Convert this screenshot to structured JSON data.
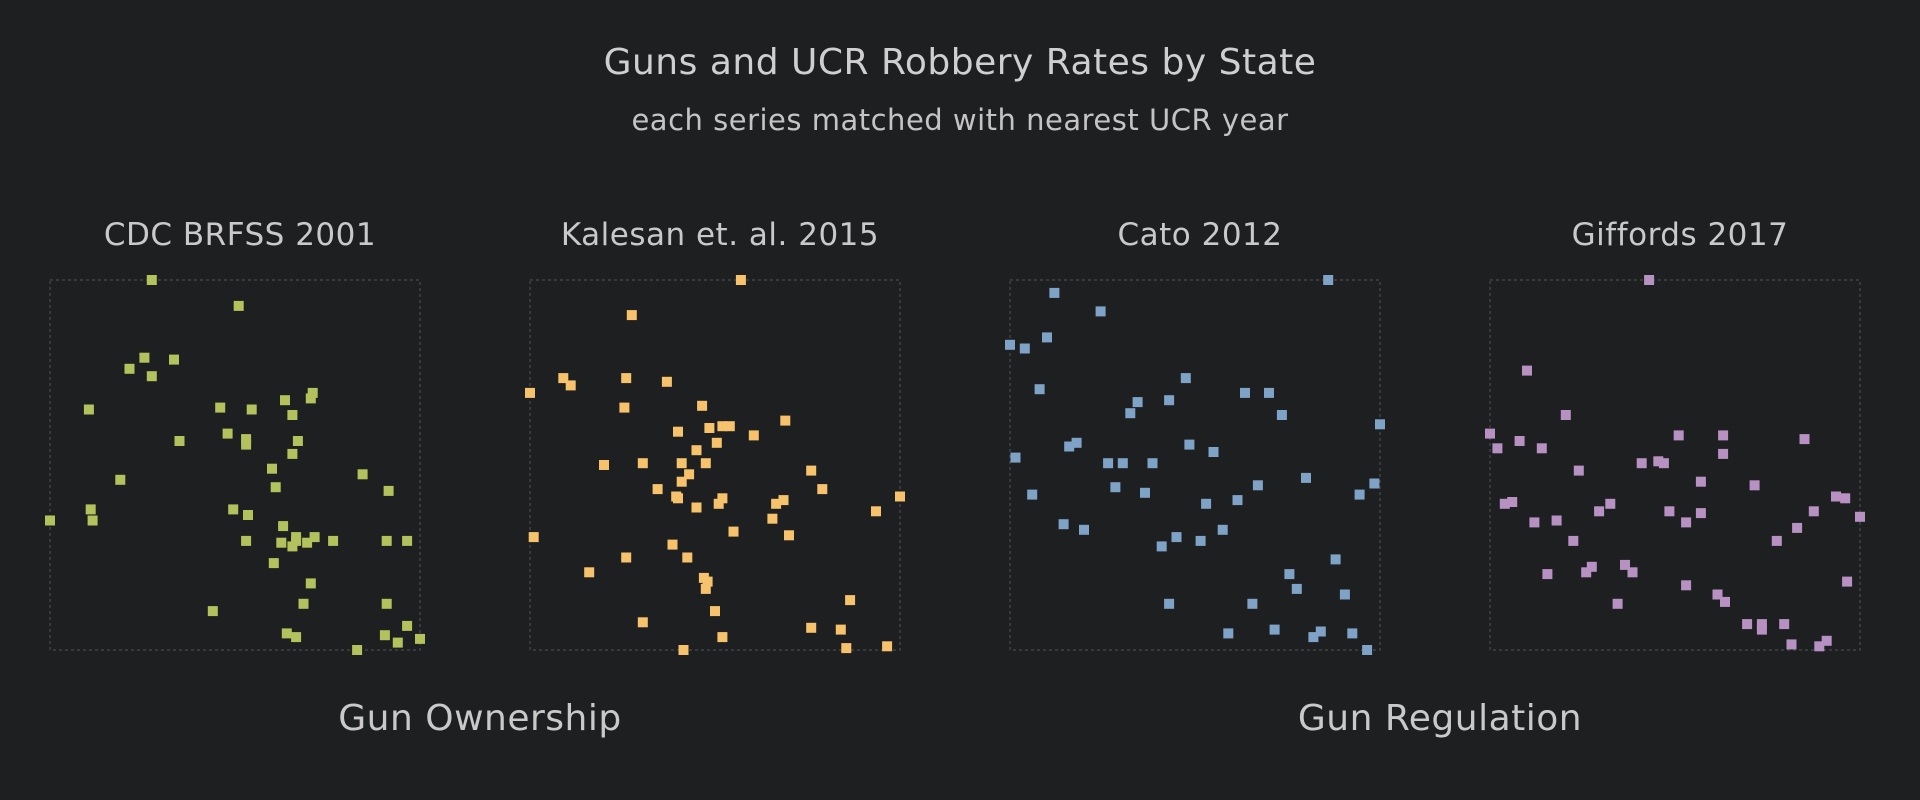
{
  "title": "Guns and UCR Robbery Rates by State",
  "subtitle": "each series matched with nearest UCR year",
  "group_labels": [
    "Gun Ownership",
    "Gun Regulation"
  ],
  "chart_data": [
    {
      "type": "scatter",
      "title": "CDC BRFSS 2001",
      "color": "#b3c25d",
      "xlim": [
        0,
        100
      ],
      "ylim": [
        0,
        100
      ],
      "grid": false,
      "points": [
        [
          27.5,
          100
        ],
        [
          51,
          93
        ],
        [
          25.5,
          79
        ],
        [
          33.5,
          78.5
        ],
        [
          21.5,
          76
        ],
        [
          27.5,
          74
        ],
        [
          10.5,
          65
        ],
        [
          46,
          65.5
        ],
        [
          54.5,
          65
        ],
        [
          63.5,
          67.5
        ],
        [
          70.5,
          68
        ],
        [
          71,
          69.5
        ],
        [
          65.5,
          63.5
        ],
        [
          48,
          58.5
        ],
        [
          35,
          56.5
        ],
        [
          53,
          57
        ],
        [
          53,
          55.5
        ],
        [
          67,
          56.5
        ],
        [
          65.5,
          53
        ],
        [
          19,
          46
        ],
        [
          60,
          49
        ],
        [
          61,
          44
        ],
        [
          84.5,
          47.5
        ],
        [
          91.5,
          43
        ],
        [
          0,
          35
        ],
        [
          11,
          38
        ],
        [
          11.5,
          35
        ],
        [
          49.5,
          38
        ],
        [
          53.5,
          36.5
        ],
        [
          63,
          33.5
        ],
        [
          66.5,
          30.5
        ],
        [
          53,
          29.5
        ],
        [
          71.5,
          30.5
        ],
        [
          62.5,
          29
        ],
        [
          65.5,
          28
        ],
        [
          66.5,
          29.5
        ],
        [
          69.5,
          29
        ],
        [
          76.5,
          29.5
        ],
        [
          91,
          29.5
        ],
        [
          96.5,
          29.5
        ],
        [
          60.5,
          23.5
        ],
        [
          70.5,
          18
        ],
        [
          44,
          10.5
        ],
        [
          68.5,
          12.5
        ],
        [
          91,
          12.5
        ],
        [
          64,
          4.5
        ],
        [
          66.5,
          3.5
        ],
        [
          90.5,
          4
        ],
        [
          96.5,
          6.5
        ],
        [
          94,
          2
        ],
        [
          100,
          3
        ],
        [
          83,
          0
        ]
      ]
    },
    {
      "type": "scatter",
      "title": "Kalesan et. al. 2015",
      "color": "#f6c26b",
      "xlim": [
        0,
        100
      ],
      "ylim": [
        0,
        100
      ],
      "grid": false,
      "points": [
        [
          57,
          100
        ],
        [
          27.5,
          90.5
        ],
        [
          0,
          69.5
        ],
        [
          9,
          73.5
        ],
        [
          11,
          71.5
        ],
        [
          26,
          73.5
        ],
        [
          37,
          72.5
        ],
        [
          25.5,
          65.5
        ],
        [
          46.5,
          66
        ],
        [
          48.5,
          60
        ],
        [
          40,
          59
        ],
        [
          52,
          60.5
        ],
        [
          54,
          60.5
        ],
        [
          60.5,
          58
        ],
        [
          69,
          62
        ],
        [
          50.5,
          56
        ],
        [
          45,
          54
        ],
        [
          30.5,
          50.5
        ],
        [
          20,
          50
        ],
        [
          41,
          50.5
        ],
        [
          41,
          45.5
        ],
        [
          43,
          47.5
        ],
        [
          47.5,
          50.5
        ],
        [
          76,
          48.5
        ],
        [
          79,
          43.5
        ],
        [
          39.5,
          41.5
        ],
        [
          40,
          41
        ],
        [
          52,
          41
        ],
        [
          34.5,
          43.5
        ],
        [
          51,
          39.5
        ],
        [
          45,
          38.5
        ],
        [
          66.5,
          39.5
        ],
        [
          68.5,
          40.5
        ],
        [
          100,
          41.5
        ],
        [
          93.5,
          37.5
        ],
        [
          65.5,
          35.5
        ],
        [
          1,
          30.5
        ],
        [
          55,
          32
        ],
        [
          38.5,
          28.5
        ],
        [
          70,
          31
        ],
        [
          42.5,
          25
        ],
        [
          26,
          25
        ],
        [
          16,
          21
        ],
        [
          47,
          19.5
        ],
        [
          48,
          18.5
        ],
        [
          47.5,
          16.5
        ],
        [
          86.5,
          13.5
        ],
        [
          50,
          10.5
        ],
        [
          30.5,
          7.5
        ],
        [
          76,
          6
        ],
        [
          84,
          5.5
        ],
        [
          52,
          3.5
        ],
        [
          41.5,
          0
        ],
        [
          85.5,
          0.5
        ],
        [
          96.5,
          1
        ]
      ]
    },
    {
      "type": "scatter",
      "title": "Cato 2012",
      "color": "#7fa3c7",
      "xlim": [
        0,
        100
      ],
      "ylim": [
        0,
        100
      ],
      "grid": false,
      "points": [
        [
          86,
          100
        ],
        [
          12,
          96.5
        ],
        [
          24.5,
          91.5
        ],
        [
          10,
          84.5
        ],
        [
          4,
          81.5
        ],
        [
          0,
          82.5
        ],
        [
          8,
          70.5
        ],
        [
          47.5,
          73.5
        ],
        [
          63.5,
          69.5
        ],
        [
          70,
          69.5
        ],
        [
          43,
          67.5
        ],
        [
          34.5,
          67
        ],
        [
          32.5,
          64
        ],
        [
          73.5,
          63.5
        ],
        [
          100,
          61
        ],
        [
          18,
          56
        ],
        [
          16,
          55
        ],
        [
          48.5,
          55.5
        ],
        [
          55,
          53.5
        ],
        [
          1.5,
          52
        ],
        [
          26.5,
          50.5
        ],
        [
          30.5,
          50.5
        ],
        [
          38.5,
          50.5
        ],
        [
          80,
          46.5
        ],
        [
          67,
          44.5
        ],
        [
          28.5,
          44
        ],
        [
          36.5,
          42.5
        ],
        [
          6,
          42
        ],
        [
          94.5,
          42
        ],
        [
          98.5,
          45
        ],
        [
          53,
          39.5
        ],
        [
          61.5,
          40.5
        ],
        [
          14.5,
          34
        ],
        [
          20,
          32.5
        ],
        [
          57.5,
          32.5
        ],
        [
          45,
          30.5
        ],
        [
          51.5,
          29.5
        ],
        [
          41,
          28
        ],
        [
          88,
          24.5
        ],
        [
          75.5,
          20.5
        ],
        [
          77.5,
          16.5
        ],
        [
          90.5,
          15
        ],
        [
          43,
          12.5
        ],
        [
          65.5,
          12.5
        ],
        [
          71.5,
          5.5
        ],
        [
          84,
          5
        ],
        [
          82,
          3.5
        ],
        [
          92.5,
          4.5
        ],
        [
          59,
          4.5
        ],
        [
          96.5,
          0
        ]
      ]
    },
    {
      "type": "scatter",
      "title": "Giffords 2017",
      "color": "#b891c3",
      "xlim": [
        0,
        100
      ],
      "ylim": [
        0,
        100
      ],
      "grid": false,
      "points": [
        [
          43,
          100
        ],
        [
          10,
          75.5
        ],
        [
          20.5,
          63.5
        ],
        [
          51,
          58
        ],
        [
          63,
          58
        ],
        [
          85,
          57
        ],
        [
          0,
          58.5
        ],
        [
          2,
          54.5
        ],
        [
          8,
          56.5
        ],
        [
          14,
          54.5
        ],
        [
          63,
          53
        ],
        [
          41,
          50.5
        ],
        [
          45.5,
          51
        ],
        [
          47,
          50.5
        ],
        [
          24,
          48.5
        ],
        [
          71.5,
          44.5
        ],
        [
          57,
          45.5
        ],
        [
          4,
          39.5
        ],
        [
          6,
          40
        ],
        [
          32.5,
          39.5
        ],
        [
          29.5,
          37.5
        ],
        [
          48.5,
          37.5
        ],
        [
          57,
          37
        ],
        [
          93.5,
          41.5
        ],
        [
          96,
          41
        ],
        [
          87.5,
          37.5
        ],
        [
          100,
          36
        ],
        [
          12,
          34.5
        ],
        [
          18,
          35
        ],
        [
          53,
          34.5
        ],
        [
          83,
          33
        ],
        [
          22.5,
          29.5
        ],
        [
          77.5,
          29.5
        ],
        [
          27.5,
          22.5
        ],
        [
          36.5,
          23
        ],
        [
          15.5,
          20.5
        ],
        [
          26,
          21
        ],
        [
          38.5,
          21
        ],
        [
          96.5,
          18.5
        ],
        [
          53,
          17.5
        ],
        [
          61.5,
          15
        ],
        [
          63.5,
          13
        ],
        [
          34.5,
          12.5
        ],
        [
          69.5,
          7
        ],
        [
          73.5,
          7
        ],
        [
          73.5,
          5.5
        ],
        [
          79.5,
          7
        ],
        [
          91,
          2.5
        ],
        [
          89,
          1
        ],
        [
          81.5,
          1.5
        ]
      ]
    }
  ]
}
